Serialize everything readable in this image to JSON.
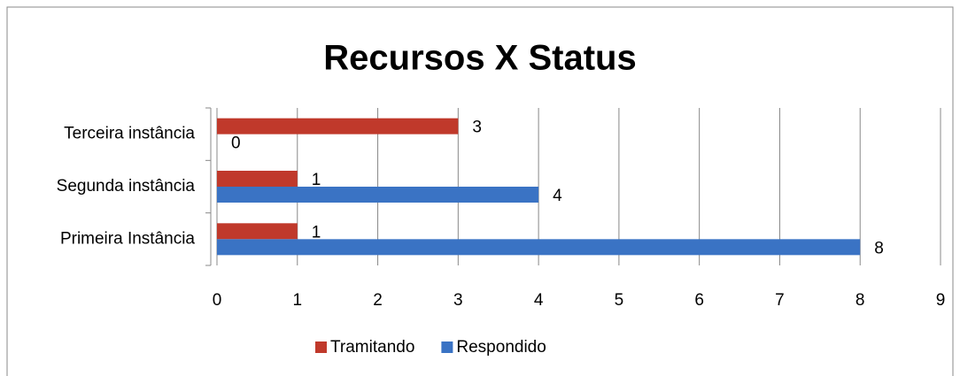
{
  "chart_data": {
    "type": "bar",
    "orientation": "horizontal",
    "title": "Recursos X Status",
    "categories": [
      "Primeira Instância",
      "Segunda instância",
      "Terceira instância"
    ],
    "series": [
      {
        "name": "Tramitando",
        "color": "#c0392b",
        "values": [
          1,
          1,
          3
        ]
      },
      {
        "name": "Respondido",
        "color": "#3a73c4",
        "values": [
          8,
          4,
          0
        ]
      }
    ],
    "xlim": [
      0,
      9
    ],
    "xticks": [
      0,
      1,
      2,
      3,
      4,
      5,
      6,
      7,
      8,
      9
    ],
    "grid": true,
    "legend": "bottom"
  }
}
